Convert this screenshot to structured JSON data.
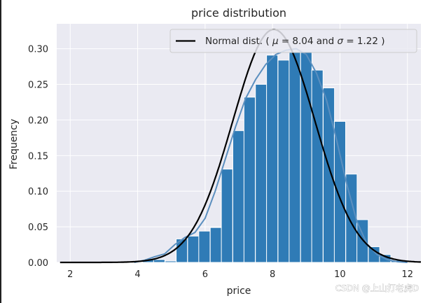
{
  "chart_data": {
    "type": "bar",
    "title": "price distribution",
    "xlabel": "price",
    "ylabel": "Frequency",
    "xlim": [
      1.6,
      12.4
    ],
    "ylim": [
      0,
      0.335
    ],
    "x_ticks": [
      2,
      4,
      6,
      8,
      10,
      12
    ],
    "y_ticks": [
      0.0,
      0.05,
      0.1,
      0.15,
      0.2,
      0.25,
      0.3
    ],
    "y_tick_labels": [
      "0.00",
      "0.05",
      "0.10",
      "0.15",
      "0.20",
      "0.25",
      "0.30"
    ],
    "grid": true,
    "legend_position": "top-right",
    "colors": {
      "bars": "#2f7bb6",
      "kde": "#5b8fbf",
      "normal": "#000000",
      "background": "#eaeaf2",
      "grid": "#ffffff"
    },
    "histogram": {
      "bin_width": 0.335,
      "bins": [
        {
          "x": 3.97,
          "value": 0.001
        },
        {
          "x": 4.31,
          "value": 0.004
        },
        {
          "x": 4.64,
          "value": 0.004
        },
        {
          "x": 4.98,
          "value": 0.002
        },
        {
          "x": 5.31,
          "value": 0.033
        },
        {
          "x": 5.65,
          "value": 0.037
        },
        {
          "x": 5.98,
          "value": 0.044
        },
        {
          "x": 6.32,
          "value": 0.049
        },
        {
          "x": 6.65,
          "value": 0.131
        },
        {
          "x": 6.99,
          "value": 0.185
        },
        {
          "x": 7.32,
          "value": 0.232
        },
        {
          "x": 7.66,
          "value": 0.25
        },
        {
          "x": 7.99,
          "value": 0.291
        },
        {
          "x": 8.33,
          "value": 0.284
        },
        {
          "x": 8.66,
          "value": 0.295
        },
        {
          "x": 9.0,
          "value": 0.296
        },
        {
          "x": 9.33,
          "value": 0.27
        },
        {
          "x": 9.67,
          "value": 0.245
        },
        {
          "x": 10.0,
          "value": 0.198
        },
        {
          "x": 10.34,
          "value": 0.124
        },
        {
          "x": 10.67,
          "value": 0.06
        },
        {
          "x": 11.01,
          "value": 0.022
        },
        {
          "x": 11.34,
          "value": 0.011
        },
        {
          "x": 11.68,
          "value": 0.003
        }
      ]
    },
    "kde": {
      "x": [
        3.9,
        4.2,
        4.5,
        4.8,
        5.1,
        5.4,
        5.7,
        6.0,
        6.3,
        6.6,
        6.9,
        7.2,
        7.5,
        7.8,
        8.1,
        8.4,
        8.7,
        9.0,
        9.3,
        9.6,
        9.9,
        10.2,
        10.5,
        10.8,
        11.1,
        11.4,
        11.7,
        12.0
      ],
      "y": [
        0.0,
        0.003,
        0.008,
        0.012,
        0.025,
        0.035,
        0.042,
        0.062,
        0.1,
        0.145,
        0.19,
        0.23,
        0.257,
        0.278,
        0.292,
        0.298,
        0.3,
        0.292,
        0.266,
        0.228,
        0.172,
        0.11,
        0.058,
        0.026,
        0.011,
        0.004,
        0.001,
        0.0
      ]
    },
    "series": [
      {
        "name": "Normal dist. ( μ = 8.04 and σ = 1.22 )",
        "mu": 8.04,
        "sigma": 1.22,
        "x_range": [
          1.7,
          12.4
        ]
      }
    ],
    "legend": {
      "prefix": "Normal dist. ( ",
      "mu_symbol": "μ",
      "mu_text": " = 8.04 and ",
      "sigma_symbol": "σ",
      "sigma_text": " = 1.22 )"
    }
  },
  "watermark": "CSDN @上山打老虎D"
}
